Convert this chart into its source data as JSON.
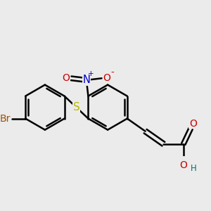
{
  "bg_color": "#ebebeb",
  "bond_color": "#000000",
  "bond_width": 1.8,
  "atom_colors": {
    "Br": "#a05000",
    "S": "#b8b800",
    "N": "#0000cc",
    "O": "#cc0000",
    "H": "#007070",
    "C": "#000000"
  },
  "font_size": 9.5
}
